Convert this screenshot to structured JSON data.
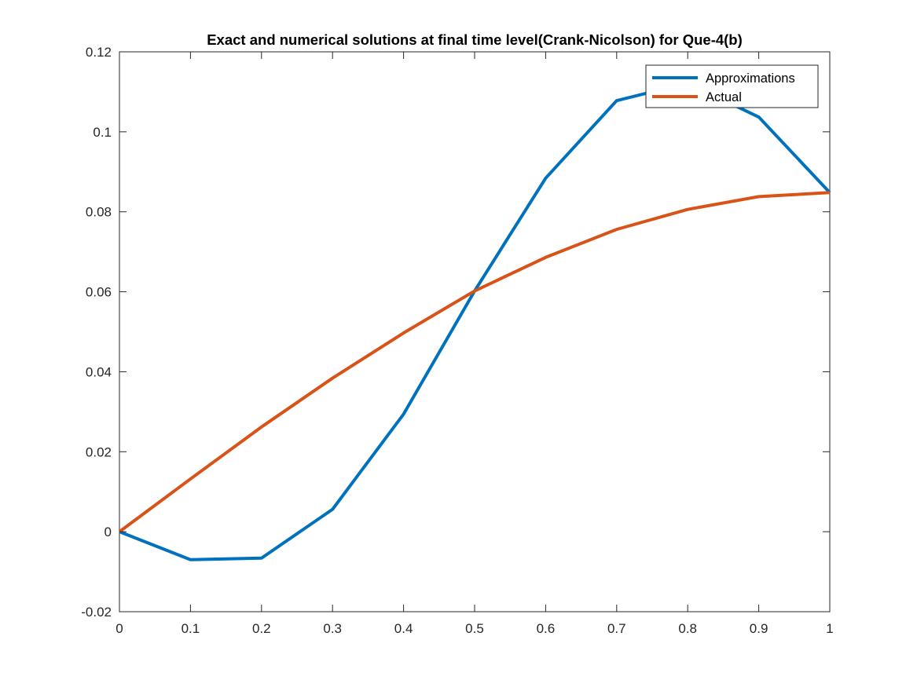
{
  "chart_data": {
    "type": "line",
    "title": "Exact and numerical solutions at final time level(Crank-Nicolson) for Que-4(b)",
    "xlabel": "",
    "ylabel": "",
    "xlim": [
      0,
      1
    ],
    "ylim": [
      -0.02,
      0.12
    ],
    "x_ticks": [
      0,
      0.1,
      0.2,
      0.3,
      0.4,
      0.5,
      0.6,
      0.7,
      0.8,
      0.9,
      1
    ],
    "x_tick_labels": [
      "0",
      "0.1",
      "0.2",
      "0.3",
      "0.4",
      "0.5",
      "0.6",
      "0.7",
      "0.8",
      "0.9",
      "1"
    ],
    "y_ticks": [
      -0.02,
      0,
      0.02,
      0.04,
      0.06,
      0.08,
      0.1,
      0.12
    ],
    "y_tick_labels": [
      "-0.02",
      "0",
      "0.02",
      "0.04",
      "0.06",
      "0.08",
      "0.1",
      "0.12"
    ],
    "grid": false,
    "legend_position": "top-right",
    "x": [
      0,
      0.1,
      0.2,
      0.3,
      0.4,
      0.5,
      0.6,
      0.7,
      0.8,
      0.9,
      1
    ],
    "series": [
      {
        "name": "Approximations",
        "color": "#0072BD",
        "values": [
          0,
          -0.007,
          -0.0066,
          0.0056,
          0.0294,
          0.0602,
          0.0884,
          0.1078,
          0.1122,
          0.1037,
          0.0848
        ]
      },
      {
        "name": "Actual",
        "color": "#D95319",
        "values": [
          0,
          0.0132,
          0.0262,
          0.0384,
          0.0497,
          0.0602,
          0.0686,
          0.0756,
          0.0806,
          0.0838,
          0.0848
        ]
      }
    ]
  }
}
